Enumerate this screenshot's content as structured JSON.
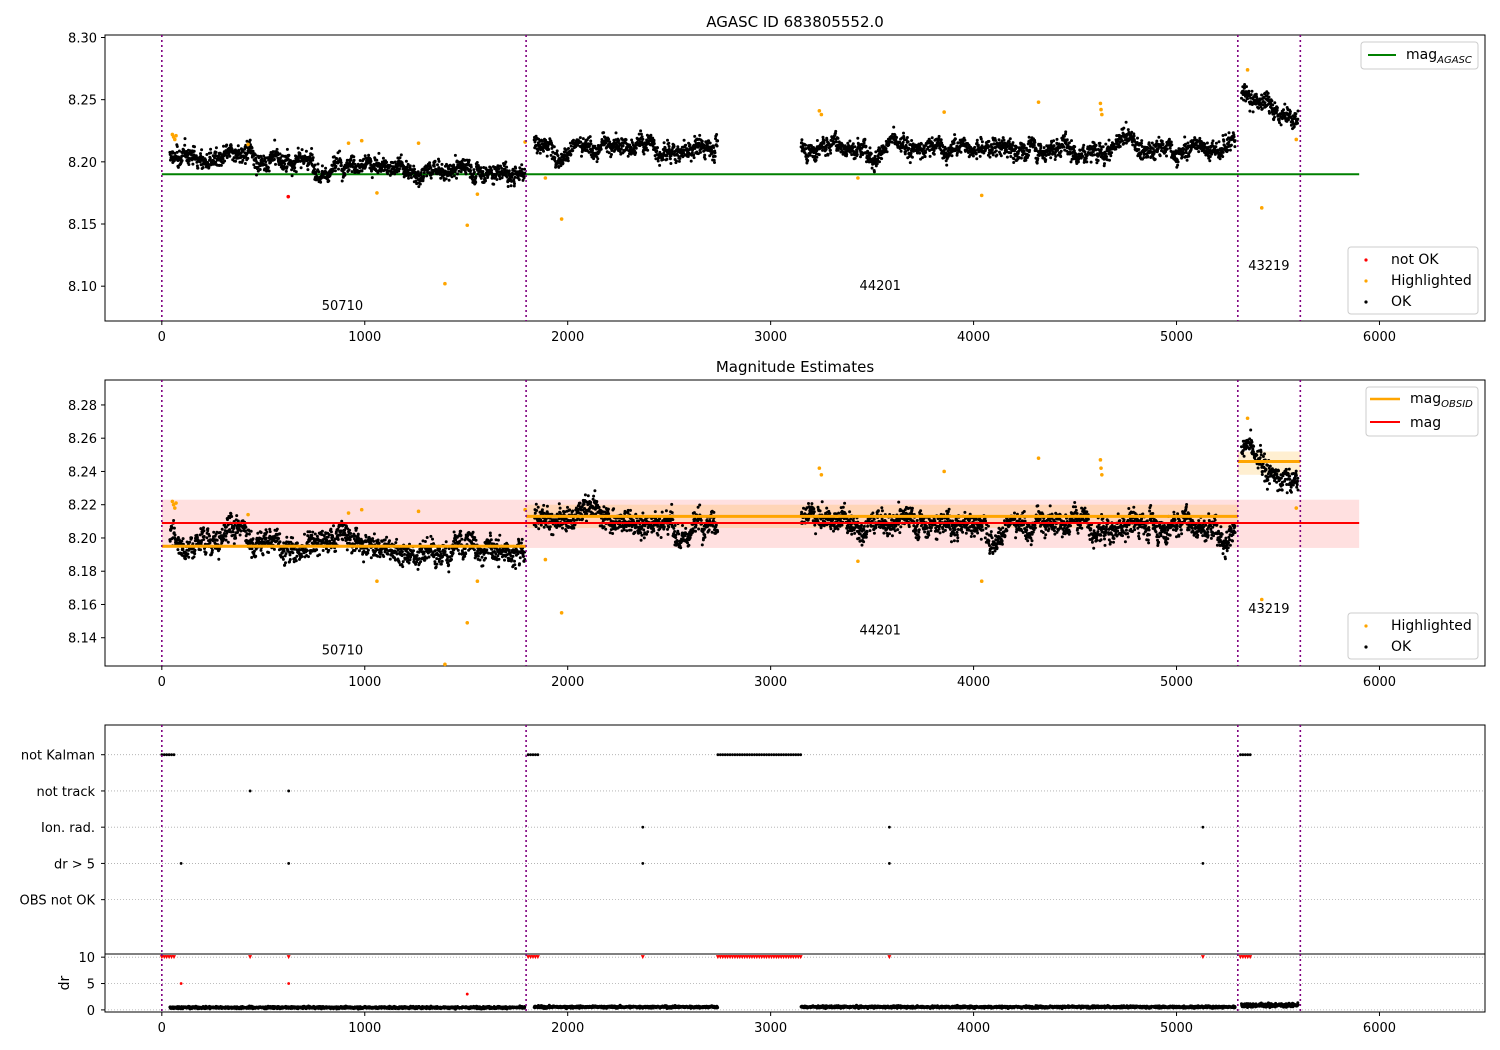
{
  "chart_data": [
    {
      "type": "scatter",
      "title": "AGASC ID 683805552.0",
      "xlim": [
        -280,
        6520
      ],
      "ylim": [
        8.072,
        8.302
      ],
      "xticks": [
        0,
        1000,
        2000,
        3000,
        4000,
        5000,
        6000
      ],
      "xtick_labels": [
        "0",
        "1000",
        "2000",
        "3000",
        "4000",
        "5000",
        "6000"
      ],
      "yticks": [
        8.1,
        8.15,
        8.2,
        8.25,
        8.3
      ],
      "ytick_labels": [
        "8.10",
        "8.15",
        "8.20",
        "8.25",
        "8.30"
      ],
      "obsid_boundaries": [
        0,
        1795,
        5302,
        5610
      ],
      "obsid_labels": [
        {
          "text": "50710",
          "x": 890,
          "y": 8.081
        },
        {
          "text": "44201",
          "x": 3540,
          "y": 8.097
        },
        {
          "text": "43219",
          "x": 5455,
          "y": 8.113
        }
      ],
      "lines": [
        {
          "name": "mag_AGASC",
          "color": "#008000",
          "y": 8.19,
          "x": [
            0,
            5900
          ]
        }
      ],
      "ok_segments": [
        {
          "x": [
            40,
            1790
          ],
          "start": 8.203,
          "end": 8.193,
          "noise": 0.0085
        },
        {
          "x": [
            1835,
            2740
          ],
          "start": 8.216,
          "end": 8.212,
          "noise": 0.0085
        },
        {
          "x": [
            3150,
            5290
          ],
          "start": 8.214,
          "end": 8.211,
          "noise": 0.0085
        },
        {
          "x": [
            5320,
            5600
          ],
          "start": 8.255,
          "end": 8.235,
          "noise": 0.0085
        }
      ],
      "not_ok_points": [
        [
          623,
          8.172
        ]
      ],
      "highlighted_points": [
        [
          52,
          8.222
        ],
        [
          58,
          8.22
        ],
        [
          64,
          8.218
        ],
        [
          70,
          8.221
        ],
        [
          425,
          8.214
        ],
        [
          920,
          8.215
        ],
        [
          985,
          8.217
        ],
        [
          1060,
          8.175
        ],
        [
          1265,
          8.215
        ],
        [
          1395,
          8.102
        ],
        [
          1505,
          8.149
        ],
        [
          1555,
          8.174
        ],
        [
          1790,
          8.216
        ],
        [
          1890,
          8.187
        ],
        [
          1970,
          8.154
        ],
        [
          3240,
          8.241
        ],
        [
          3250,
          8.238
        ],
        [
          3430,
          8.187
        ],
        [
          3855,
          8.24
        ],
        [
          4040,
          8.173
        ],
        [
          4320,
          8.248
        ],
        [
          4625,
          8.247
        ],
        [
          4628,
          8.242
        ],
        [
          4632,
          8.238
        ],
        [
          5350,
          8.274
        ],
        [
          5420,
          8.163
        ],
        [
          5590,
          8.218
        ]
      ],
      "legend_upper": [
        {
          "label": "mag",
          "sub": "AGASC",
          "color": "#008000"
        }
      ],
      "legend_lower": [
        {
          "label": "not OK",
          "color": "#ff0000"
        },
        {
          "label": "Highlighted",
          "color": "#ffa500"
        },
        {
          "label": "OK",
          "color": "#000000"
        }
      ]
    },
    {
      "type": "scatter",
      "title": "Magnitude Estimates",
      "xlim": [
        -280,
        6520
      ],
      "ylim": [
        8.123,
        8.295
      ],
      "xticks": [
        0,
        1000,
        2000,
        3000,
        4000,
        5000,
        6000
      ],
      "xtick_labels": [
        "0",
        "1000",
        "2000",
        "3000",
        "4000",
        "5000",
        "6000"
      ],
      "yticks": [
        8.14,
        8.16,
        8.18,
        8.2,
        8.22,
        8.24,
        8.26,
        8.28
      ],
      "ytick_labels": [
        "8.14",
        "8.16",
        "8.18",
        "8.20",
        "8.22",
        "8.24",
        "8.26",
        "8.28"
      ],
      "obsid_boundaries": [
        0,
        1795,
        5302,
        5610
      ],
      "obsid_labels": [
        {
          "text": "50710",
          "x": 890,
          "y": 8.13
        },
        {
          "text": "44201",
          "x": 3540,
          "y": 8.142
        },
        {
          "text": "43219",
          "x": 5455,
          "y": 8.155
        }
      ],
      "bands": [
        {
          "x": [
            0,
            5900
          ],
          "y": [
            8.194,
            8.223
          ],
          "color": "#ff0000",
          "opacity": 0.12
        },
        {
          "x": [
            1795,
            5302
          ],
          "y": [
            8.206,
            8.22
          ],
          "color": "#ffa500",
          "opacity": 0.18
        },
        {
          "x": [
            5302,
            5610
          ],
          "y": [
            8.238,
            8.252
          ],
          "color": "#ffa500",
          "opacity": 0.18
        }
      ],
      "lines": [
        {
          "name": "mag_OBSID",
          "color": "#ffa500",
          "y": 8.195,
          "x": [
            0,
            1795
          ]
        },
        {
          "name": "mag_OBSID",
          "color": "#ffa500",
          "y": 8.213,
          "x": [
            1795,
            5302
          ]
        },
        {
          "name": "mag_OBSID",
          "color": "#ffa500",
          "y": 8.246,
          "x": [
            5302,
            5610
          ]
        },
        {
          "name": "mag",
          "color": "#ff0000",
          "y": 8.209,
          "x": [
            0,
            5900
          ]
        }
      ],
      "ok_segments": [
        {
          "x": [
            40,
            1790
          ],
          "start": 8.2,
          "end": 8.192,
          "noise": 0.0085
        },
        {
          "x": [
            1835,
            2740
          ],
          "start": 8.214,
          "end": 8.209,
          "noise": 0.0085
        },
        {
          "x": [
            3150,
            5290
          ],
          "start": 8.212,
          "end": 8.209,
          "noise": 0.0085
        },
        {
          "x": [
            5320,
            5600
          ],
          "start": 8.252,
          "end": 8.232,
          "noise": 0.0085
        }
      ],
      "highlighted_points": [
        [
          52,
          8.222
        ],
        [
          58,
          8.22
        ],
        [
          64,
          8.218
        ],
        [
          70,
          8.221
        ],
        [
          425,
          8.214
        ],
        [
          920,
          8.215
        ],
        [
          985,
          8.217
        ],
        [
          1060,
          8.174
        ],
        [
          1265,
          8.216
        ],
        [
          1395,
          8.124
        ],
        [
          1505,
          8.149
        ],
        [
          1555,
          8.174
        ],
        [
          1790,
          8.217
        ],
        [
          1890,
          8.187
        ],
        [
          1970,
          8.155
        ],
        [
          3240,
          8.242
        ],
        [
          3250,
          8.238
        ],
        [
          3430,
          8.186
        ],
        [
          3855,
          8.24
        ],
        [
          4040,
          8.174
        ],
        [
          4320,
          8.248
        ],
        [
          4625,
          8.247
        ],
        [
          4628,
          8.242
        ],
        [
          4632,
          8.238
        ],
        [
          5350,
          8.272
        ],
        [
          5420,
          8.163
        ],
        [
          5590,
          8.218
        ]
      ],
      "legend_upper": [
        {
          "label": "mag",
          "sub": "OBSID",
          "color": "#ffa500"
        },
        {
          "label": "mag",
          "sub": "",
          "color": "#ff0000"
        }
      ],
      "legend_lower": [
        {
          "label": "Highlighted",
          "color": "#ffa500"
        },
        {
          "label": "OK",
          "color": "#000000"
        }
      ]
    },
    {
      "type": "scatter",
      "title": "",
      "xlim": [
        -280,
        6520
      ],
      "ylim": [
        -0.5,
        5.82
      ],
      "xticks": [
        0,
        1000,
        2000,
        3000,
        4000,
        5000,
        6000
      ],
      "xtick_labels": [
        "0",
        "1000",
        "2000",
        "3000",
        "4000",
        "5000",
        "6000"
      ],
      "obsid_boundaries": [
        0,
        1795,
        5302,
        5610
      ],
      "flag_rows": [
        {
          "label": "not Kalman",
          "level": 5,
          "points": [
            [
              0,
              1
            ],
            [
              12,
              1
            ],
            [
              24,
              1
            ],
            [
              36,
              1
            ],
            [
              48,
              1
            ],
            [
              60,
              1
            ],
            [
              1805,
              1
            ],
            [
              1817,
              1
            ],
            [
              1829,
              1
            ],
            [
              1841,
              1
            ],
            [
              1853,
              1
            ],
            [
              5315,
              1
            ],
            [
              5327,
              1
            ],
            [
              5339,
              1
            ],
            [
              5351,
              1
            ],
            [
              5363,
              1
            ]
          ],
          "ranges": [
            [
              2740,
              3150
            ]
          ]
        },
        {
          "label": "not track",
          "level": 4,
          "points": [
            [
              435,
              1
            ],
            [
              625,
              1
            ]
          ],
          "ranges": []
        },
        {
          "label": "Ion. rad.",
          "level": 3,
          "points": [
            [
              2370,
              1
            ],
            [
              3585,
              1
            ],
            [
              5130,
              1
            ]
          ],
          "ranges": []
        },
        {
          "label": "dr > 5",
          "level": 2,
          "points": [
            [
              95,
              1
            ],
            [
              625,
              1
            ],
            [
              2370,
              1
            ],
            [
              3585,
              1
            ],
            [
              5130,
              1
            ]
          ],
          "ranges": []
        },
        {
          "label": "OBS not OK",
          "level": 1,
          "points": [],
          "ranges": []
        }
      ]
    },
    {
      "type": "scatter",
      "title": "",
      "xlim": [
        -280,
        6520
      ],
      "ylim": [
        -0.4,
        10.6
      ],
      "ylabel": "dr",
      "yticks": [
        0,
        5,
        10
      ],
      "ytick_labels": [
        "0",
        "5",
        "10"
      ],
      "xticks": [
        0,
        1000,
        2000,
        3000,
        4000,
        5000,
        6000
      ],
      "xtick_labels": [
        "0",
        "1000",
        "2000",
        "3000",
        "4000",
        "5000",
        "6000"
      ],
      "obsid_boundaries": [
        0,
        1795,
        5302,
        5610
      ],
      "capped_value": 10,
      "capped_points_red": [
        [
          0,
          10
        ],
        [
          12,
          10
        ],
        [
          24,
          10
        ],
        [
          36,
          10
        ],
        [
          48,
          10
        ],
        [
          60,
          10
        ],
        [
          435,
          10
        ],
        [
          625,
          10
        ],
        [
          1805,
          10
        ],
        [
          1817,
          10
        ],
        [
          1829,
          10
        ],
        [
          1841,
          10
        ],
        [
          1853,
          10
        ],
        [
          2370,
          10
        ],
        [
          3585,
          10
        ],
        [
          5130,
          10
        ],
        [
          5315,
          10
        ],
        [
          5327,
          10
        ],
        [
          5339,
          10
        ],
        [
          5351,
          10
        ],
        [
          5363,
          10
        ]
      ],
      "capped_range_red": [
        2740,
        3150
      ],
      "red_points": [
        [
          95,
          5
        ],
        [
          625,
          5
        ],
        [
          1505,
          3
        ]
      ],
      "ok_segments": [
        {
          "x": [
            40,
            1790
          ],
          "level": 0.45,
          "noise": 0.3
        },
        {
          "x": [
            1835,
            2740
          ],
          "level": 0.55,
          "noise": 0.3
        },
        {
          "x": [
            3150,
            5290
          ],
          "level": 0.55,
          "noise": 0.3
        },
        {
          "x": [
            5320,
            5600
          ],
          "level": 0.9,
          "noise": 0.5
        }
      ]
    }
  ]
}
